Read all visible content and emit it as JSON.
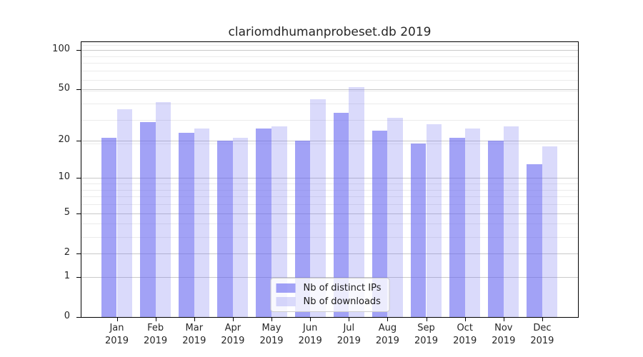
{
  "chart_data": {
    "type": "bar",
    "title": "clariomdhumanprobeset.db 2019",
    "categories": [
      "Jan 2019",
      "Feb 2019",
      "Mar 2019",
      "Apr 2019",
      "May 2019",
      "Jun 2019",
      "Jul 2019",
      "Aug 2019",
      "Sep 2019",
      "Oct 2019",
      "Nov 2019",
      "Dec 2019"
    ],
    "series": [
      {
        "name": "Nb of distinct IPs",
        "color": "rgba(100,100,240,0.60)",
        "values": [
          21,
          28,
          23,
          20,
          25,
          20,
          33,
          24,
          19,
          21,
          20,
          13
        ]
      },
      {
        "name": "Nb of downloads",
        "color": "rgba(100,100,240,0.24)",
        "values": [
          35,
          40,
          25,
          21,
          26,
          42,
          52,
          30,
          27,
          25,
          26,
          18
        ]
      }
    ],
    "xlabel": "",
    "ylabel": "",
    "yscale": "log1p",
    "ylim": [
      0,
      114
    ],
    "yticks": [
      0,
      1,
      2,
      5,
      10,
      20,
      50,
      100
    ],
    "minor_gridlines": [
      3,
      4,
      6,
      7,
      8,
      9,
      19,
      29,
      39,
      49,
      59,
      69,
      79,
      89,
      109
    ],
    "grid": "horizontal",
    "legend_position": "lower center"
  },
  "colors": {
    "major_grid": "#c9c9c9",
    "minor_grid": "#ebebeb",
    "axis": "#000000",
    "text": "#262626",
    "background": "#ffffff"
  }
}
